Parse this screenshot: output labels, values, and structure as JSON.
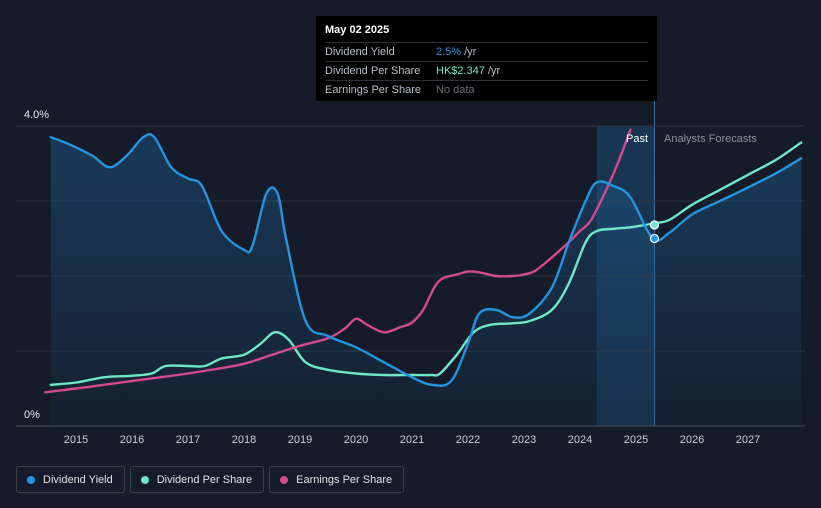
{
  "tooltip": {
    "date": "May 02 2025",
    "rows": [
      {
        "label": "Dividend Yield",
        "value": "2.5%",
        "unit": "/yr"
      },
      {
        "label": "Dividend Per Share",
        "value": "HK$2.347",
        "unit": "/yr"
      },
      {
        "label": "Earnings Per Share",
        "value": "No data"
      }
    ]
  },
  "regions": {
    "past": "Past",
    "forecast": "Analysts Forecasts"
  },
  "legend": [
    {
      "label": "Dividend Yield",
      "color": "#2394df"
    },
    {
      "label": "Dividend Per Share",
      "color": "#6ee8c7"
    },
    {
      "label": "Earnings Per Share",
      "color": "#d5498f"
    }
  ],
  "chart_data": {
    "type": "line",
    "ylim": [
      0,
      4.0
    ],
    "y_tick_labels": [
      "4.0%",
      "0%"
    ],
    "xlim": [
      2014.6,
      2027.95
    ],
    "x_ticks": [
      2015,
      2016,
      2017,
      2018,
      2019,
      2020,
      2021,
      2022,
      2023,
      2024,
      2025,
      2026,
      2027
    ],
    "forecast_start": 2025.33,
    "highlight_start": 2024.3,
    "grid": true,
    "legend_position": "bottom-left",
    "series": [
      {
        "name": "Dividend Yield",
        "color": "#2394df",
        "area": true,
        "x": [
          2014.55,
          2014.9,
          2015.3,
          2015.6,
          2015.9,
          2016.2,
          2016.4,
          2016.7,
          2017.0,
          2017.25,
          2017.6,
          2018.0,
          2018.15,
          2018.4,
          2018.6,
          2018.75,
          2019.1,
          2019.5,
          2020.0,
          2020.5,
          2021.0,
          2021.35,
          2021.7,
          2022.0,
          2022.2,
          2022.5,
          2022.8,
          2023.1,
          2023.5,
          2023.8,
          2024.1,
          2024.3,
          2024.6,
          2024.9,
          2025.3,
          2025.6,
          2026.0,
          2026.5,
          2027.0,
          2027.5,
          2027.95
        ],
        "y": [
          3.85,
          3.75,
          3.6,
          3.45,
          3.6,
          3.85,
          3.85,
          3.45,
          3.3,
          3.2,
          2.6,
          2.35,
          2.4,
          3.1,
          3.1,
          2.5,
          1.4,
          1.2,
          1.05,
          0.85,
          0.65,
          0.55,
          0.6,
          1.1,
          1.5,
          1.55,
          1.45,
          1.5,
          1.85,
          2.45,
          3.0,
          3.25,
          3.2,
          3.05,
          2.5,
          2.58,
          2.82,
          3.0,
          3.18,
          3.37,
          3.57
        ]
      },
      {
        "name": "Dividend Per Share",
        "color": "#6ee8c7",
        "area": false,
        "x": [
          2014.55,
          2015.0,
          2015.5,
          2016.0,
          2016.35,
          2016.6,
          2017.0,
          2017.3,
          2017.6,
          2018.0,
          2018.3,
          2018.55,
          2018.8,
          2019.1,
          2019.5,
          2020.0,
          2020.5,
          2021.0,
          2021.35,
          2021.5,
          2021.8,
          2022.1,
          2022.4,
          2022.8,
          2023.1,
          2023.5,
          2023.8,
          2024.1,
          2024.3,
          2024.6,
          2024.9,
          2025.3,
          2025.6,
          2026.0,
          2026.5,
          2027.0,
          2027.5,
          2027.95
        ],
        "y": [
          0.55,
          0.58,
          0.65,
          0.67,
          0.7,
          0.8,
          0.8,
          0.8,
          0.9,
          0.95,
          1.1,
          1.25,
          1.15,
          0.85,
          0.75,
          0.7,
          0.68,
          0.68,
          0.68,
          0.7,
          0.95,
          1.25,
          1.35,
          1.37,
          1.4,
          1.55,
          1.9,
          2.45,
          2.6,
          2.63,
          2.65,
          2.7,
          2.75,
          2.95,
          3.15,
          3.35,
          3.55,
          3.78
        ]
      },
      {
        "name": "Earnings Per Share",
        "color": "#d5498f",
        "area": false,
        "x": [
          2014.45,
          2015.0,
          2015.5,
          2016.0,
          2016.5,
          2017.0,
          2017.5,
          2018.0,
          2018.5,
          2019.0,
          2019.5,
          2019.8,
          2020.0,
          2020.2,
          2020.5,
          2020.8,
          2021.0,
          2021.2,
          2021.4,
          2021.55,
          2021.8,
          2022.0,
          2022.2,
          2022.5,
          2022.8,
          2023.0,
          2023.2,
          2023.5,
          2023.8,
          2024.0,
          2024.2,
          2024.5,
          2024.7,
          2024.9
        ],
        "y": [
          0.45,
          0.5,
          0.55,
          0.6,
          0.65,
          0.7,
          0.76,
          0.83,
          0.95,
          1.07,
          1.17,
          1.3,
          1.43,
          1.35,
          1.25,
          1.32,
          1.38,
          1.55,
          1.85,
          1.97,
          2.02,
          2.06,
          2.05,
          2.0,
          2.0,
          2.02,
          2.07,
          2.25,
          2.45,
          2.6,
          2.75,
          3.2,
          3.55,
          3.95
        ]
      }
    ],
    "markers": [
      {
        "series": "Dividend Yield",
        "x": 2025.33,
        "y": 2.5
      },
      {
        "series": "Dividend Per Share",
        "x": 2025.33,
        "y": 2.68
      }
    ]
  }
}
